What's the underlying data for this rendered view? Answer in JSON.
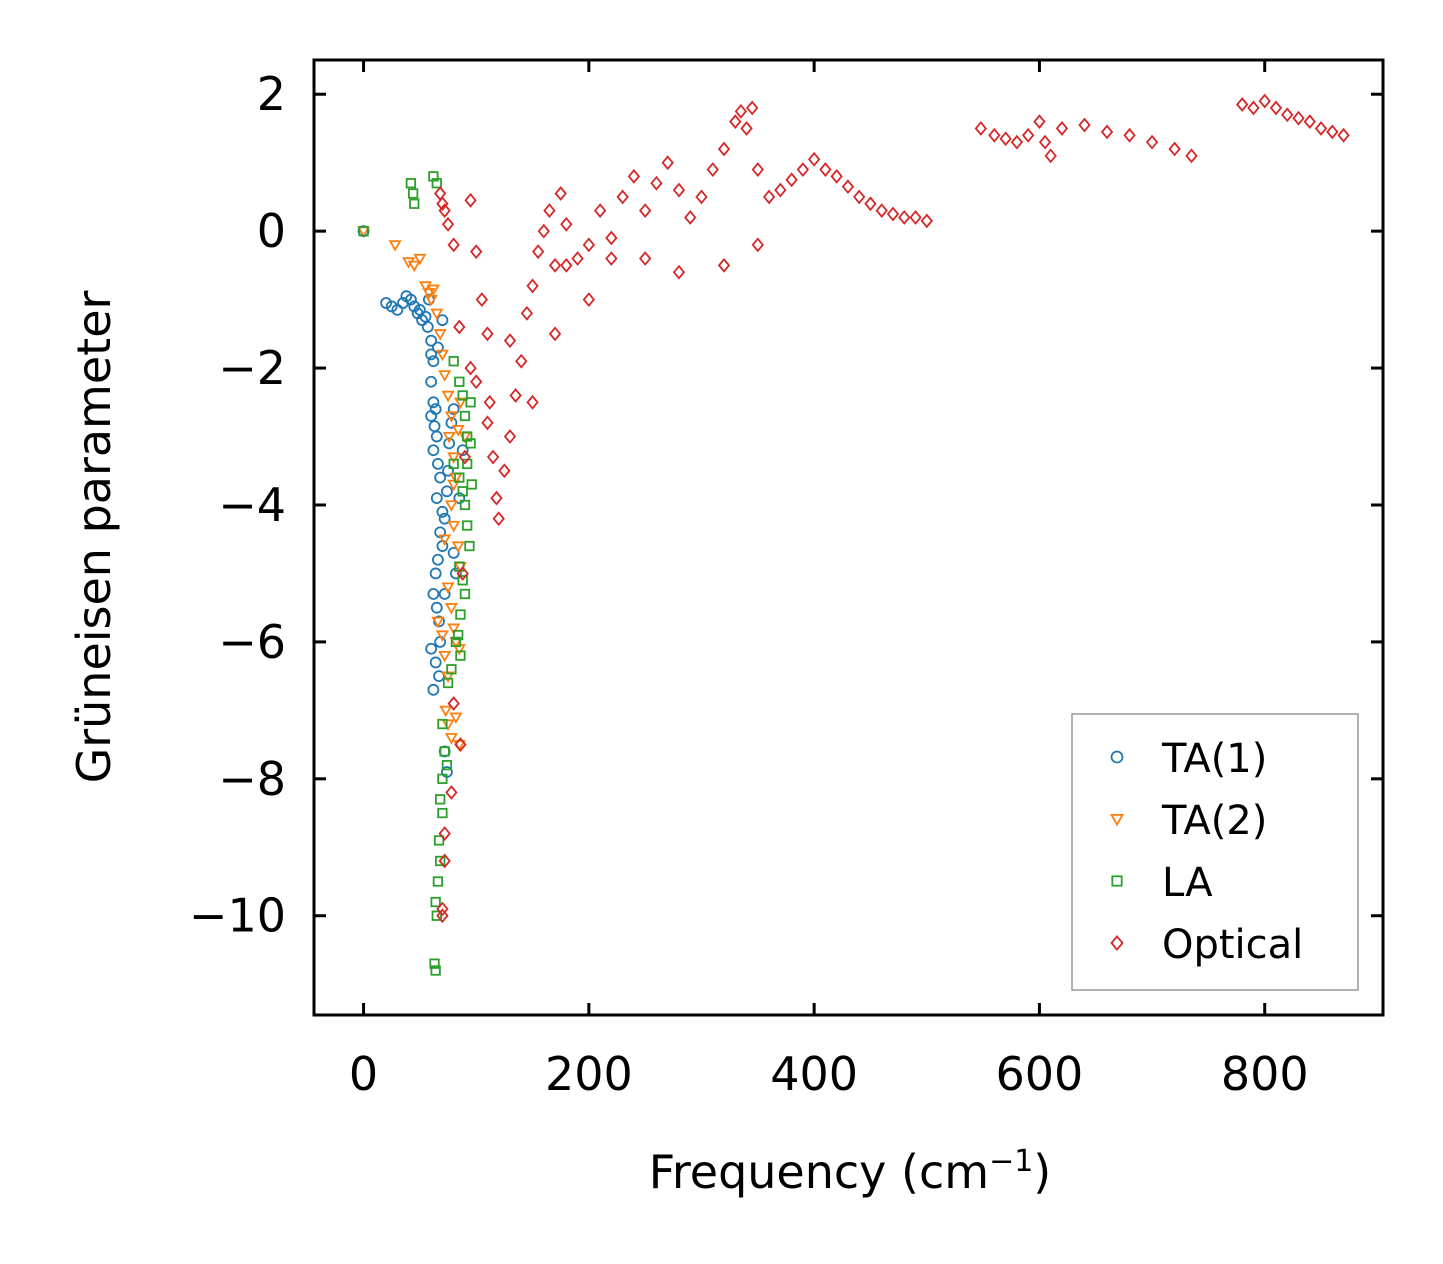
{
  "chart_data": {
    "type": "scatter",
    "title": "",
    "xlabel": "Frequency (cm",
    "xlabel_sup": "−1",
    "xlabel_close": ")",
    "ylabel": "Grüneisen parameter",
    "xlim": [
      -44,
      905
    ],
    "ylim": [
      -11.45,
      2.5
    ],
    "xticks": [
      0,
      200,
      400,
      600,
      800
    ],
    "xtick_labels": [
      "0",
      "200",
      "400",
      "600",
      "800"
    ],
    "yticks": [
      2,
      0,
      -2,
      -4,
      -6,
      -8,
      -10
    ],
    "ytick_labels": [
      "2",
      "0",
      "−2",
      "−4",
      "−6",
      "−8",
      "−10"
    ],
    "grid": false,
    "legend_position": "lower-right",
    "series": [
      {
        "name": "TA(1)",
        "marker": "circle",
        "color": "#1f77b4",
        "points": [
          [
            0,
            0
          ],
          [
            20,
            -1.05
          ],
          [
            25,
            -1.1
          ],
          [
            30,
            -1.15
          ],
          [
            35,
            -1.05
          ],
          [
            38,
            -0.95
          ],
          [
            42,
            -1.0
          ],
          [
            45,
            -1.1
          ],
          [
            48,
            -1.2
          ],
          [
            50,
            -1.15
          ],
          [
            52,
            -1.3
          ],
          [
            55,
            -1.25
          ],
          [
            57,
            -1.4
          ],
          [
            58,
            -1.0
          ],
          [
            60,
            -1.6
          ],
          [
            60,
            -1.8
          ],
          [
            62,
            -1.9
          ],
          [
            60,
            -2.2
          ],
          [
            62,
            -2.5
          ],
          [
            60,
            -2.7
          ],
          [
            63,
            -2.85
          ],
          [
            65,
            -3.0
          ],
          [
            62,
            -3.2
          ],
          [
            66,
            -3.4
          ],
          [
            68,
            -3.6
          ],
          [
            65,
            -3.9
          ],
          [
            70,
            -4.1
          ],
          [
            68,
            -4.4
          ],
          [
            70,
            -4.6
          ],
          [
            66,
            -4.8
          ],
          [
            64,
            -5.0
          ],
          [
            62,
            -5.3
          ],
          [
            65,
            -5.5
          ],
          [
            67,
            -5.7
          ],
          [
            60,
            -6.1
          ],
          [
            64,
            -6.3
          ],
          [
            67,
            -6.5
          ],
          [
            62,
            -6.7
          ],
          [
            72,
            -4.2
          ],
          [
            75,
            -3.5
          ],
          [
            78,
            -2.8
          ],
          [
            80,
            -2.6
          ],
          [
            76,
            -3.1
          ],
          [
            74,
            -3.8
          ],
          [
            80,
            -4.7
          ],
          [
            82,
            -5.0
          ],
          [
            72,
            -5.3
          ],
          [
            68,
            -6.0
          ],
          [
            70,
            -1.3
          ],
          [
            66,
            -1.7
          ],
          [
            72,
            -7.6
          ],
          [
            74,
            -7.9
          ],
          [
            85,
            -3.9
          ],
          [
            88,
            -3.2
          ],
          [
            64,
            -2.6
          ]
        ]
      },
      {
        "name": "TA(2)",
        "marker": "triangle",
        "color": "#ff7f0e",
        "points": [
          [
            0,
            0
          ],
          [
            28,
            -0.2
          ],
          [
            40,
            -0.45
          ],
          [
            45,
            -0.5
          ],
          [
            50,
            -0.4
          ],
          [
            55,
            -0.8
          ],
          [
            58,
            -0.9
          ],
          [
            60,
            -1.0
          ],
          [
            62,
            -0.85
          ],
          [
            65,
            -1.2
          ],
          [
            68,
            -1.5
          ],
          [
            70,
            -1.8
          ],
          [
            72,
            -2.1
          ],
          [
            75,
            -2.4
          ],
          [
            78,
            -2.7
          ],
          [
            76,
            -3.0
          ],
          [
            80,
            -3.3
          ],
          [
            82,
            -3.6
          ],
          [
            78,
            -4.0
          ],
          [
            80,
            -4.3
          ],
          [
            84,
            -4.6
          ],
          [
            86,
            -4.9
          ],
          [
            75,
            -5.2
          ],
          [
            78,
            -5.5
          ],
          [
            80,
            -5.8
          ],
          [
            82,
            -6.0
          ],
          [
            85,
            -6.1
          ],
          [
            70,
            -5.9
          ],
          [
            72,
            -6.2
          ],
          [
            75,
            -6.5
          ],
          [
            73,
            -7.0
          ],
          [
            75,
            -7.2
          ],
          [
            78,
            -7.4
          ],
          [
            82,
            -7.1
          ],
          [
            85,
            -7.5
          ],
          [
            80,
            -3.7
          ],
          [
            84,
            -2.9
          ],
          [
            86,
            -2.5
          ],
          [
            90,
            -3.0
          ],
          [
            72,
            -4.5
          ],
          [
            66,
            -5.7
          ]
        ]
      },
      {
        "name": "LA",
        "marker": "square",
        "color": "#2ca02c",
        "points": [
          [
            0,
            0
          ],
          [
            42,
            0.7
          ],
          [
            44,
            0.55
          ],
          [
            45,
            0.4
          ],
          [
            62,
            0.8
          ],
          [
            65,
            0.7
          ],
          [
            80,
            -1.9
          ],
          [
            85,
            -2.2
          ],
          [
            88,
            -2.4
          ],
          [
            90,
            -2.7
          ],
          [
            92,
            -3.0
          ],
          [
            95,
            -3.1
          ],
          [
            80,
            -3.4
          ],
          [
            85,
            -3.6
          ],
          [
            88,
            -3.8
          ],
          [
            90,
            -4.0
          ],
          [
            92,
            -4.3
          ],
          [
            94,
            -4.6
          ],
          [
            85,
            -4.9
          ],
          [
            88,
            -5.1
          ],
          [
            90,
            -5.3
          ],
          [
            86,
            -5.6
          ],
          [
            84,
            -5.9
          ],
          [
            86,
            -6.2
          ],
          [
            82,
            -6.0
          ],
          [
            78,
            -6.4
          ],
          [
            75,
            -6.6
          ],
          [
            70,
            -7.2
          ],
          [
            72,
            -7.6
          ],
          [
            74,
            -7.8
          ],
          [
            70,
            -8.0
          ],
          [
            68,
            -8.3
          ],
          [
            70,
            -8.5
          ],
          [
            67,
            -8.9
          ],
          [
            68,
            -9.2
          ],
          [
            66,
            -9.5
          ],
          [
            64,
            -9.8
          ],
          [
            65,
            -10.0
          ],
          [
            63,
            -10.7
          ],
          [
            64,
            -10.8
          ],
          [
            95,
            -2.5
          ],
          [
            92,
            -3.4
          ],
          [
            96,
            -3.7
          ]
        ]
      },
      {
        "name": "Optical",
        "marker": "diamond",
        "color": "#d62728",
        "density": "dense-scattered-band",
        "points": [
          [
            68,
            0.55
          ],
          [
            70,
            0.4
          ],
          [
            72,
            0.3
          ],
          [
            75,
            0.1
          ],
          [
            80,
            -0.2
          ],
          [
            95,
            0.45
          ],
          [
            100,
            -0.3
          ],
          [
            105,
            -1.0
          ],
          [
            110,
            -1.5
          ],
          [
            112,
            -2.5
          ],
          [
            115,
            -3.3
          ],
          [
            118,
            -3.9
          ],
          [
            120,
            -4.2
          ],
          [
            125,
            -3.5
          ],
          [
            130,
            -3.0
          ],
          [
            135,
            -2.4
          ],
          [
            140,
            -1.9
          ],
          [
            145,
            -1.2
          ],
          [
            150,
            -0.8
          ],
          [
            155,
            -0.3
          ],
          [
            160,
            0.0
          ],
          [
            165,
            0.3
          ],
          [
            170,
            -0.5
          ],
          [
            175,
            0.55
          ],
          [
            180,
            0.1
          ],
          [
            190,
            -0.4
          ],
          [
            200,
            -0.2
          ],
          [
            210,
            0.3
          ],
          [
            220,
            -0.1
          ],
          [
            230,
            0.5
          ],
          [
            240,
            0.8
          ],
          [
            250,
            0.3
          ],
          [
            260,
            0.7
          ],
          [
            270,
            1.0
          ],
          [
            280,
            0.6
          ],
          [
            290,
            0.2
          ],
          [
            300,
            0.5
          ],
          [
            310,
            0.9
          ],
          [
            320,
            1.2
          ],
          [
            330,
            1.6
          ],
          [
            335,
            1.75
          ],
          [
            340,
            1.5
          ],
          [
            345,
            1.8
          ],
          [
            350,
            0.9
          ],
          [
            360,
            0.5
          ],
          [
            370,
            0.6
          ],
          [
            380,
            0.75
          ],
          [
            390,
            0.9
          ],
          [
            400,
            1.05
          ],
          [
            410,
            0.9
          ],
          [
            420,
            0.8
          ],
          [
            430,
            0.65
          ],
          [
            440,
            0.5
          ],
          [
            450,
            0.4
          ],
          [
            460,
            0.3
          ],
          [
            470,
            0.25
          ],
          [
            480,
            0.2
          ],
          [
            490,
            0.2
          ],
          [
            500,
            0.15
          ],
          [
            548,
            1.5
          ],
          [
            560,
            1.4
          ],
          [
            570,
            1.35
          ],
          [
            580,
            1.3
          ],
          [
            590,
            1.4
          ],
          [
            600,
            1.6
          ],
          [
            605,
            1.3
          ],
          [
            610,
            1.1
          ],
          [
            620,
            1.5
          ],
          [
            640,
            1.55
          ],
          [
            660,
            1.45
          ],
          [
            680,
            1.4
          ],
          [
            700,
            1.3
          ],
          [
            720,
            1.2
          ],
          [
            735,
            1.1
          ],
          [
            780,
            1.85
          ],
          [
            790,
            1.8
          ],
          [
            800,
            1.9
          ],
          [
            810,
            1.8
          ],
          [
            820,
            1.7
          ],
          [
            830,
            1.65
          ],
          [
            840,
            1.6
          ],
          [
            850,
            1.5
          ],
          [
            860,
            1.45
          ],
          [
            870,
            1.4
          ],
          [
            85,
            -1.4
          ],
          [
            88,
            -5.0
          ],
          [
            86,
            -7.5
          ],
          [
            80,
            -6.9
          ],
          [
            78,
            -8.2
          ],
          [
            72,
            -9.2
          ],
          [
            70,
            -9.9
          ],
          [
            70,
            -10.0
          ],
          [
            72,
            -8.8
          ],
          [
            90,
            -3.3
          ],
          [
            95,
            -2.0
          ],
          [
            100,
            -2.2
          ],
          [
            110,
            -2.8
          ],
          [
            130,
            -1.6
          ],
          [
            150,
            -2.5
          ],
          [
            170,
            -1.5
          ],
          [
            180,
            -0.5
          ],
          [
            200,
            -1.0
          ],
          [
            220,
            -0.4
          ],
          [
            250,
            -0.4
          ],
          [
            280,
            -0.6
          ],
          [
            320,
            -0.5
          ],
          [
            350,
            -0.2
          ]
        ]
      }
    ]
  }
}
